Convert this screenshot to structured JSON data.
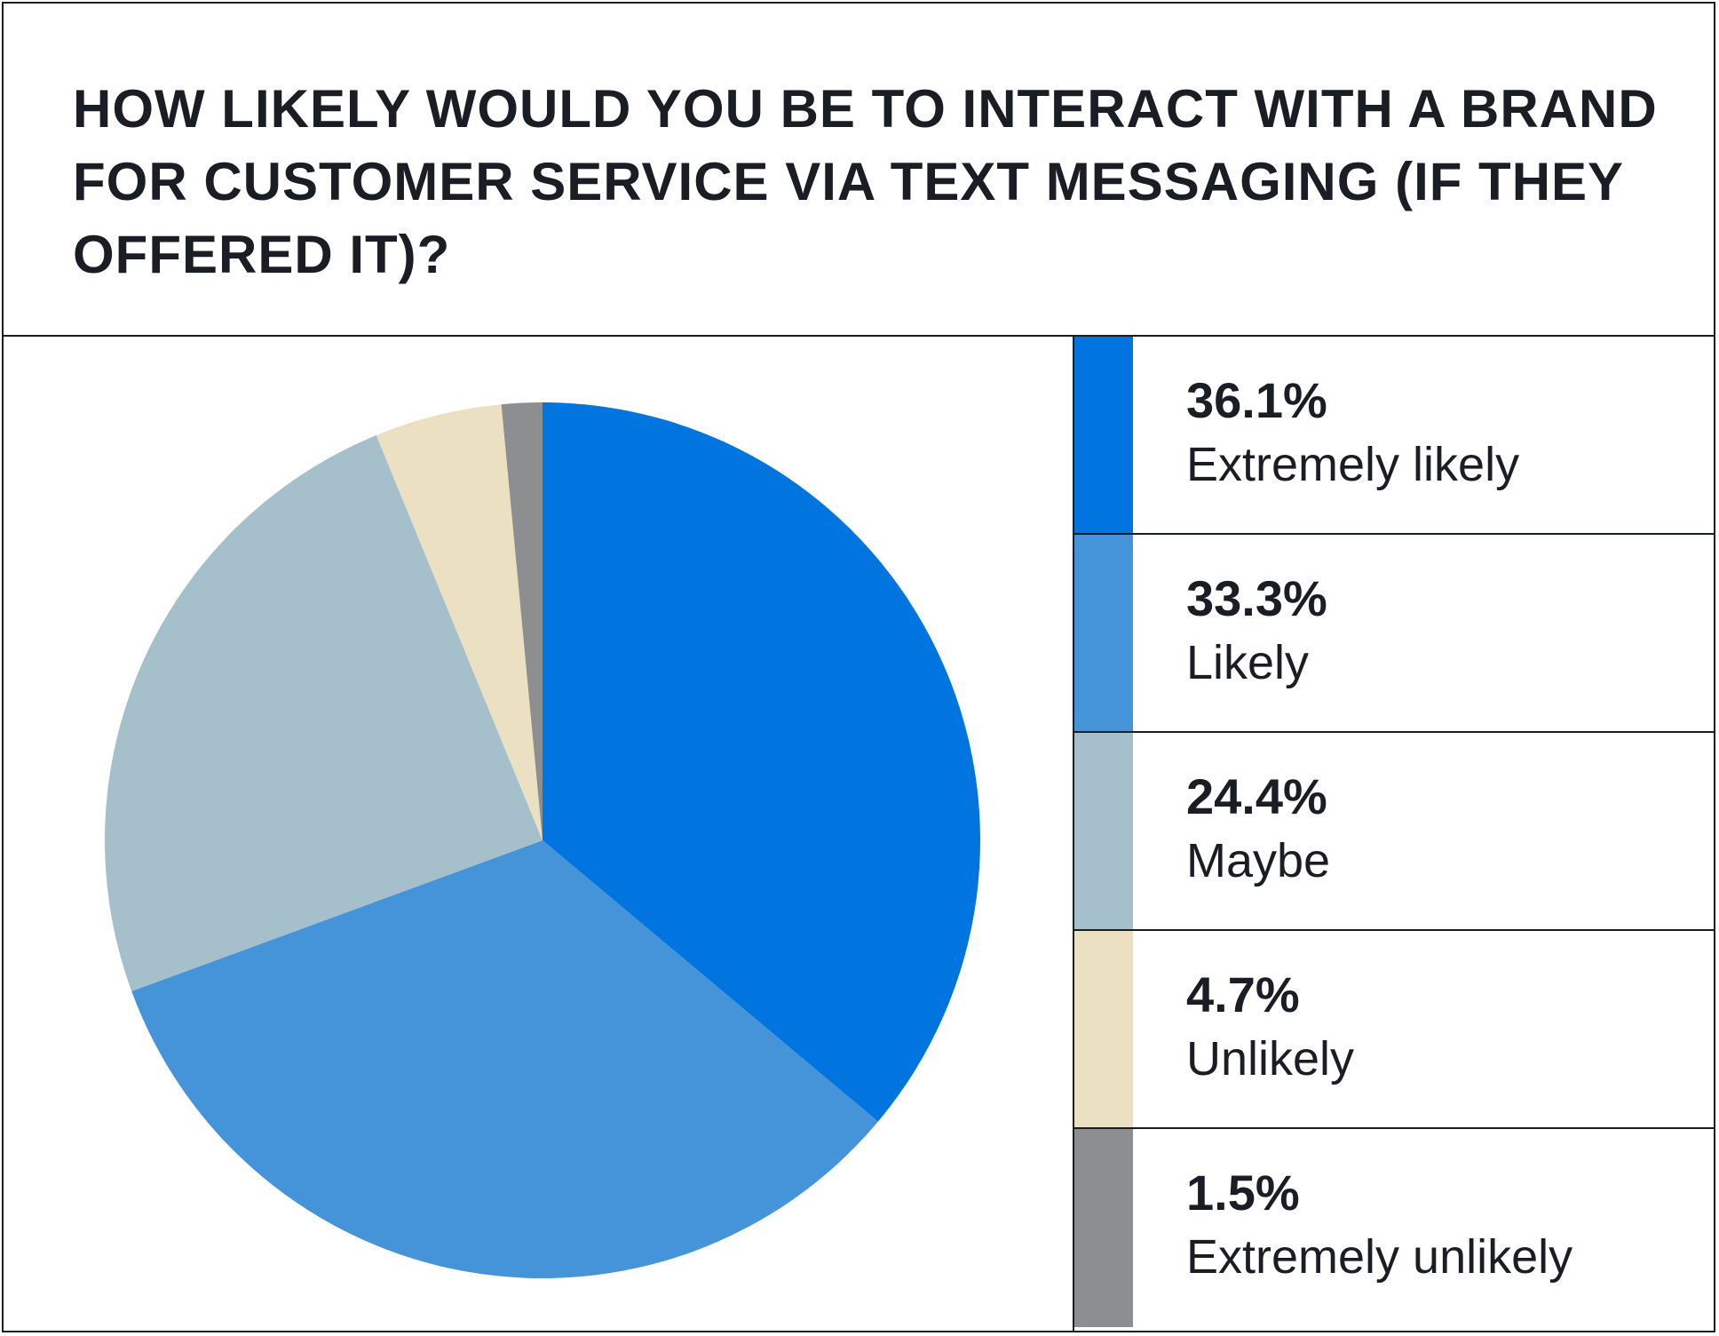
{
  "title": "How likely would you be to interact with a brand for customer service via text messaging (if they offered it)?",
  "chart_data": {
    "type": "pie",
    "title": "How likely would you be to interact with a brand for customer service via text messaging (if they offered it)?",
    "categories": [
      "Extremely likely",
      "Likely",
      "Maybe",
      "Unlikely",
      "Extremely unlikely"
    ],
    "values": [
      36.1,
      33.3,
      24.4,
      4.7,
      1.5
    ],
    "value_labels": [
      "36.1%",
      "33.3%",
      "24.4%",
      "4.7%",
      "1.5%"
    ],
    "colors": [
      "#0075e0",
      "#4594d9",
      "#a6c0cb",
      "#ebe0c2",
      "#8d8e90"
    ],
    "legend_position": "right"
  }
}
